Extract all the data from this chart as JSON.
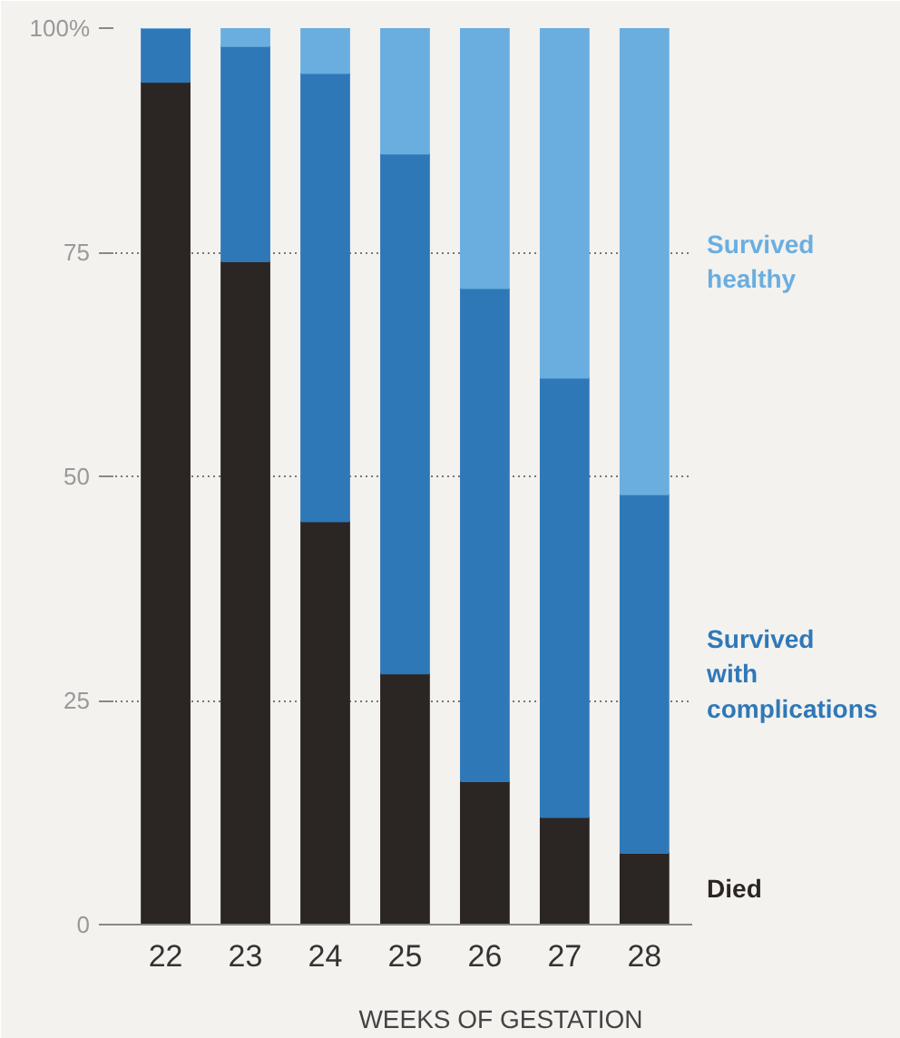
{
  "chart_data": {
    "type": "bar",
    "stacked": true,
    "xlabel": "WEEKS OF GESTATION",
    "categories": [
      "22",
      "23",
      "24",
      "25",
      "26",
      "27",
      "28"
    ],
    "series": [
      {
        "name": "Died",
        "color": "#2b2523",
        "values": [
          94,
          74,
          45,
          28,
          16,
          12,
          8
        ]
      },
      {
        "name": "Survived with complications",
        "color": "#2f78b8",
        "values": [
          6,
          24,
          50,
          58,
          55,
          49,
          40
        ]
      },
      {
        "name": "Survived healthy",
        "color": "#6aaee0",
        "values": [
          0,
          2,
          5,
          14,
          29,
          39,
          52
        ]
      }
    ],
    "ylim": [
      0,
      100
    ],
    "yticks": [
      0,
      25,
      50,
      75,
      {
        "value": 100,
        "label": "100%"
      }
    ],
    "grid": "y"
  }
}
